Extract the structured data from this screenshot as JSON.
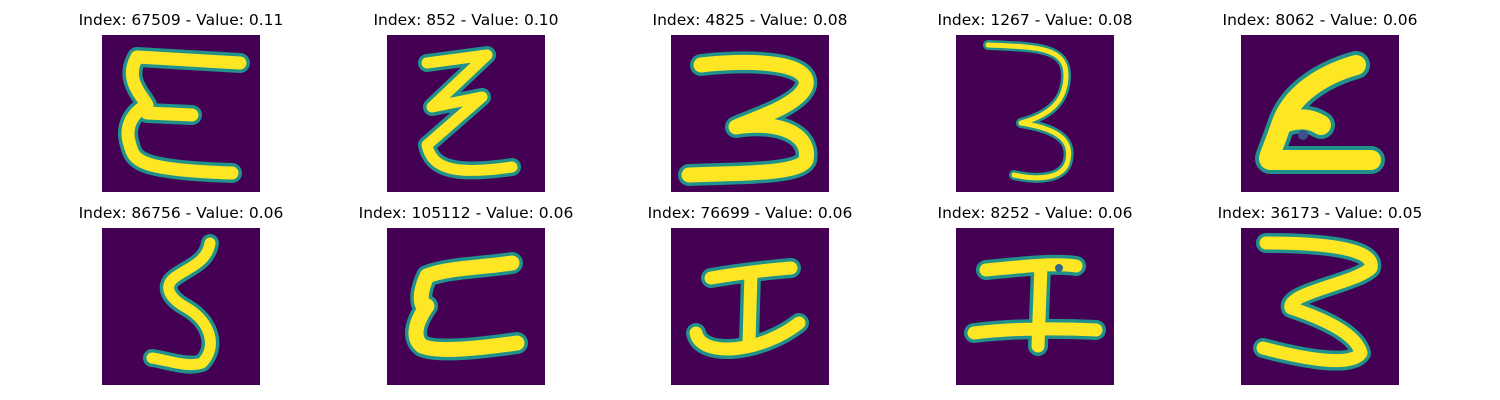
{
  "colors": {
    "background": "#440154",
    "stroke": "#fde725",
    "edge": "#21918c"
  },
  "panels": [
    {
      "title": "Index: 67509 - Value: 0.11",
      "glyph": "E"
    },
    {
      "title": "Index: 852 - Value: 0.10",
      "glyph": "Z"
    },
    {
      "title": "Index: 4825 - Value: 0.08",
      "glyph": "3"
    },
    {
      "title": "Index: 1267 - Value: 0.08",
      "glyph": "3"
    },
    {
      "title": "Index: 8062 - Value: 0.06",
      "glyph": "L"
    },
    {
      "title": "Index: 86756 - Value: 0.06",
      "glyph": "5"
    },
    {
      "title": "Index: 105112 - Value: 0.06",
      "glyph": "E"
    },
    {
      "title": "Index: 76699 - Value: 0.06",
      "glyph": "I"
    },
    {
      "title": "Index: 8252 - Value: 0.06",
      "glyph": "I"
    },
    {
      "title": "Index: 36173 - Value: 0.05",
      "glyph": "3"
    }
  ]
}
